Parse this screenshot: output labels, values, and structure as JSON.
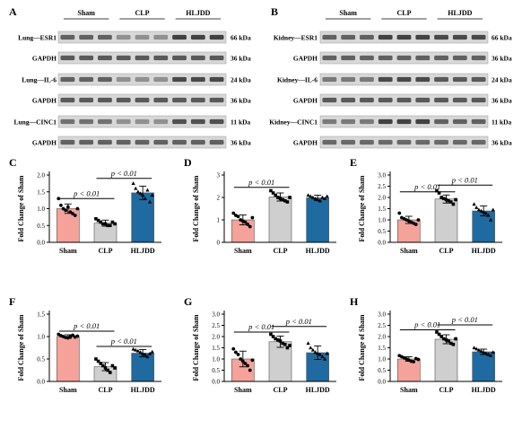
{
  "colors": {
    "sham": "#f4a29a",
    "clp": "#cfcfcf",
    "hljdd": "#1f6aa0",
    "blot_bg": "#d8d8d8",
    "band": "#3a3a3a",
    "axis": "#000000"
  },
  "blots": [
    {
      "letter": "A",
      "groups": [
        "Sham",
        "CLP",
        "HLJDD"
      ],
      "rows": [
        {
          "label": "Lung—ESR1",
          "kda": "66 kDa",
          "intensity": [
            0.75,
            0.75,
            0.75,
            0.45,
            0.45,
            0.45,
            0.95,
            0.95,
            0.95
          ]
        },
        {
          "label": "GAPDH",
          "kda": "36 kDa",
          "intensity": [
            0.8,
            0.8,
            0.8,
            0.8,
            0.8,
            0.8,
            0.8,
            0.8,
            0.8
          ]
        },
        {
          "label": "Lung—IL-6",
          "kda": "24 kDa",
          "intensity": [
            0.75,
            0.75,
            0.75,
            0.45,
            0.45,
            0.45,
            0.9,
            0.9,
            0.9
          ]
        },
        {
          "label": "GAPDH",
          "kda": "36 kDa",
          "intensity": [
            0.8,
            0.8,
            0.8,
            0.8,
            0.8,
            0.8,
            0.8,
            0.8,
            0.8
          ]
        },
        {
          "label": "Lung—CINC1",
          "kda": "11 kDa",
          "intensity": [
            0.65,
            0.65,
            0.65,
            0.45,
            0.45,
            0.45,
            0.85,
            0.85,
            0.85
          ]
        },
        {
          "label": "GAPDH",
          "kda": "36 kDa",
          "intensity": [
            0.75,
            0.75,
            0.75,
            0.75,
            0.75,
            0.75,
            0.75,
            0.75,
            0.75
          ]
        }
      ]
    },
    {
      "letter": "B",
      "groups": [
        "Sham",
        "CLP",
        "HLJDD"
      ],
      "rows": [
        {
          "label": "Kidney—ESR1",
          "kda": "66 kDa",
          "intensity": [
            0.75,
            0.75,
            0.75,
            0.95,
            0.95,
            0.95,
            0.9,
            0.9,
            0.9
          ]
        },
        {
          "label": "GAPDH",
          "kda": "36 kDa",
          "intensity": [
            0.75,
            0.75,
            0.75,
            0.75,
            0.75,
            0.75,
            0.75,
            0.75,
            0.75
          ]
        },
        {
          "label": "Kidney—IL-6",
          "kda": "24 kDa",
          "intensity": [
            0.6,
            0.6,
            0.6,
            0.9,
            0.9,
            0.9,
            0.8,
            0.8,
            0.8
          ]
        },
        {
          "label": "GAPDH",
          "kda": "36 kDa",
          "intensity": [
            0.8,
            0.8,
            0.8,
            0.8,
            0.8,
            0.8,
            0.8,
            0.8,
            0.8
          ]
        },
        {
          "label": "Kidney—CINC1",
          "kda": "11 kDa",
          "intensity": [
            0.6,
            0.6,
            0.6,
            0.95,
            0.95,
            0.95,
            0.75,
            0.75,
            0.75
          ]
        },
        {
          "label": "GAPDH",
          "kda": "36 kDa",
          "intensity": [
            0.7,
            0.7,
            0.7,
            0.7,
            0.7,
            0.7,
            0.7,
            0.7,
            0.7
          ]
        }
      ]
    }
  ],
  "chart_data": [
    {
      "letter": "C",
      "type": "bar",
      "categories": [
        "Sham",
        "CLP",
        "HLJDD"
      ],
      "values": [
        1.0,
        0.57,
        1.47
      ],
      "errors": [
        0.14,
        0.09,
        0.2
      ],
      "points": [
        [
          1.3,
          1.1,
          1.0,
          0.95,
          1.05,
          0.9,
          0.85,
          0.8,
          1.0
        ],
        [
          0.7,
          0.65,
          0.6,
          0.55,
          0.55,
          0.5,
          0.5,
          0.6,
          0.55
        ],
        [
          1.75,
          1.6,
          1.5,
          1.45,
          1.4,
          1.3,
          1.55,
          1.2,
          1.4
        ]
      ],
      "ylabel": "Fold Change of Sham",
      "ylim": [
        0,
        2.0
      ],
      "yticks": [
        0.0,
        0.5,
        1.0,
        1.5,
        2.0
      ],
      "ticklabels": [
        "0.0",
        "0.5",
        "1.0",
        "1.5",
        "2.0"
      ],
      "annotations": [
        {
          "text": "p < 0.01",
          "from": 0,
          "to": 1,
          "y": 1.3
        },
        {
          "text": "p < 0.01",
          "from": 1,
          "to": 2,
          "y": 1.9
        }
      ]
    },
    {
      "letter": "D",
      "type": "bar",
      "categories": [
        "Sham",
        "CLP",
        "HLJDD"
      ],
      "values": [
        1.0,
        2.02,
        1.98
      ],
      "errors": [
        0.22,
        0.18,
        0.12
      ],
      "points": [
        [
          1.3,
          1.2,
          1.15,
          1.0,
          0.95,
          0.9,
          0.8,
          0.7,
          1.1
        ],
        [
          2.3,
          2.2,
          2.1,
          2.0,
          1.95,
          1.9,
          1.85,
          1.8,
          2.0
        ],
        [
          2.1,
          2.05,
          2.0,
          1.95,
          1.9,
          1.85,
          2.0,
          1.95,
          2.05
        ]
      ],
      "ylabel": "Fold Change of Sham",
      "ylim": [
        0,
        3.0
      ],
      "yticks": [
        0,
        1,
        2,
        3
      ],
      "ticklabels": [
        "0",
        "1",
        "2",
        "3"
      ],
      "annotations": [
        {
          "text": "p < 0.01",
          "from": 0,
          "to": 1,
          "y": 2.45
        }
      ]
    },
    {
      "letter": "E",
      "type": "bar",
      "categories": [
        "Sham",
        "CLP",
        "HLJDD"
      ],
      "values": [
        1.0,
        1.93,
        1.4
      ],
      "errors": [
        0.16,
        0.18,
        0.22
      ],
      "points": [
        [
          1.3,
          1.1,
          1.05,
          1.0,
          0.95,
          0.9,
          0.85,
          0.8,
          1.0
        ],
        [
          2.3,
          2.2,
          2.0,
          1.95,
          1.9,
          1.85,
          1.8,
          1.7,
          1.9
        ],
        [
          1.7,
          1.55,
          1.45,
          1.4,
          1.35,
          1.3,
          1.2,
          1.0,
          1.45
        ]
      ],
      "ylabel": "Fold Change of Sham",
      "ylim": [
        0,
        3.0
      ],
      "yticks": [
        0.0,
        0.5,
        1.0,
        1.5,
        2.0,
        2.5,
        3.0
      ],
      "ticklabels": [
        "0.0",
        "0.5",
        "1.0",
        "1.5",
        "2.0",
        "2.5",
        "3.0"
      ],
      "annotations": [
        {
          "text": "p < 0.01",
          "from": 0,
          "to": 1,
          "y": 2.25
        },
        {
          "text": "p < 0.01",
          "from": 1,
          "to": 2,
          "y": 2.55
        }
      ]
    },
    {
      "letter": "F",
      "type": "bar",
      "categories": [
        "Sham",
        "CLP",
        "HLJDD"
      ],
      "values": [
        1.0,
        0.33,
        0.63
      ],
      "errors": [
        0.04,
        0.09,
        0.08
      ],
      "points": [
        [
          1.05,
          1.02,
          1.0,
          0.98,
          0.97,
          1.0,
          1.03,
          0.99,
          1.01
        ],
        [
          0.5,
          0.45,
          0.4,
          0.35,
          0.3,
          0.25,
          0.2,
          0.35,
          0.3
        ],
        [
          0.72,
          0.7,
          0.68,
          0.65,
          0.62,
          0.6,
          0.55,
          0.62,
          0.66
        ]
      ],
      "ylabel": "Fold Change of Sham",
      "ylim": [
        0,
        1.5
      ],
      "yticks": [
        0.0,
        0.5,
        1.0,
        1.5
      ],
      "ticklabels": [
        "0.0",
        "0.5",
        "1.0",
        "1.5"
      ],
      "annotations": [
        {
          "text": "p < 0.01",
          "from": 0,
          "to": 1,
          "y": 1.12
        },
        {
          "text": "p < 0.01",
          "from": 1,
          "to": 2,
          "y": 0.78
        }
      ]
    },
    {
      "letter": "G",
      "type": "bar",
      "categories": [
        "Sham",
        "CLP",
        "HLJDD"
      ],
      "values": [
        1.0,
        1.77,
        1.28
      ],
      "errors": [
        0.35,
        0.25,
        0.3
      ],
      "points": [
        [
          1.45,
          1.3,
          1.2,
          1.0,
          0.9,
          0.8,
          0.7,
          0.5,
          0.95
        ],
        [
          2.1,
          2.0,
          1.9,
          1.85,
          1.8,
          1.7,
          1.65,
          1.5,
          1.6
        ],
        [
          1.7,
          1.5,
          1.4,
          1.3,
          1.25,
          1.2,
          1.1,
          1.0,
          1.25
        ]
      ],
      "ylabel": "Fold Change of Sham",
      "ylim": [
        0,
        3.0
      ],
      "yticks": [
        0.0,
        0.5,
        1.0,
        1.5,
        2.0,
        2.5,
        3.0
      ],
      "ticklabels": [
        "0.0",
        "0.5",
        "1.0",
        "1.5",
        "2.0",
        "2.5",
        "3.0"
      ],
      "annotations": [
        {
          "text": "p < 0.01",
          "from": 0,
          "to": 1,
          "y": 2.2
        },
        {
          "text": "p < 0.01",
          "from": 1,
          "to": 2,
          "y": 2.45
        }
      ]
    },
    {
      "letter": "H",
      "type": "bar",
      "categories": [
        "Sham",
        "CLP",
        "HLJDD"
      ],
      "values": [
        1.0,
        1.88,
        1.32
      ],
      "errors": [
        0.1,
        0.2,
        0.12
      ],
      "points": [
        [
          1.15,
          1.1,
          1.05,
          1.0,
          0.95,
          0.9,
          0.88,
          1.02,
          0.98
        ],
        [
          2.2,
          2.1,
          2.0,
          1.9,
          1.85,
          1.8,
          1.7,
          1.65,
          1.9
        ],
        [
          1.5,
          1.45,
          1.4,
          1.35,
          1.3,
          1.25,
          1.2,
          1.15,
          1.3
        ]
      ],
      "ylabel": "Fold Change of Sham",
      "ylim": [
        0,
        3.0
      ],
      "yticks": [
        0.0,
        0.5,
        1.0,
        1.5,
        2.0,
        2.5,
        3.0
      ],
      "ticklabels": [
        "0.0",
        "0.5",
        "1.0",
        "1.5",
        "2.0",
        "2.5",
        "3.0"
      ],
      "annotations": [
        {
          "text": "p < 0.01",
          "from": 0,
          "to": 1,
          "y": 2.3
        },
        {
          "text": "p < 0.01",
          "from": 1,
          "to": 2,
          "y": 2.52
        }
      ]
    }
  ]
}
